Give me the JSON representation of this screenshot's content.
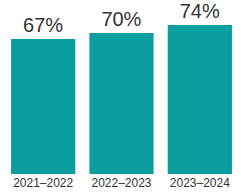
{
  "chart_data": {
    "type": "bar",
    "categories": [
      "2021–2022",
      "2022–2023",
      "2023–2024"
    ],
    "values": [
      67,
      70,
      74
    ],
    "value_labels": [
      "67%",
      "70%",
      "74%"
    ],
    "color": "#0a9e9e",
    "ylim": [
      0,
      74
    ],
    "data_labels": true,
    "tick_labels": "x",
    "grid": false
  }
}
